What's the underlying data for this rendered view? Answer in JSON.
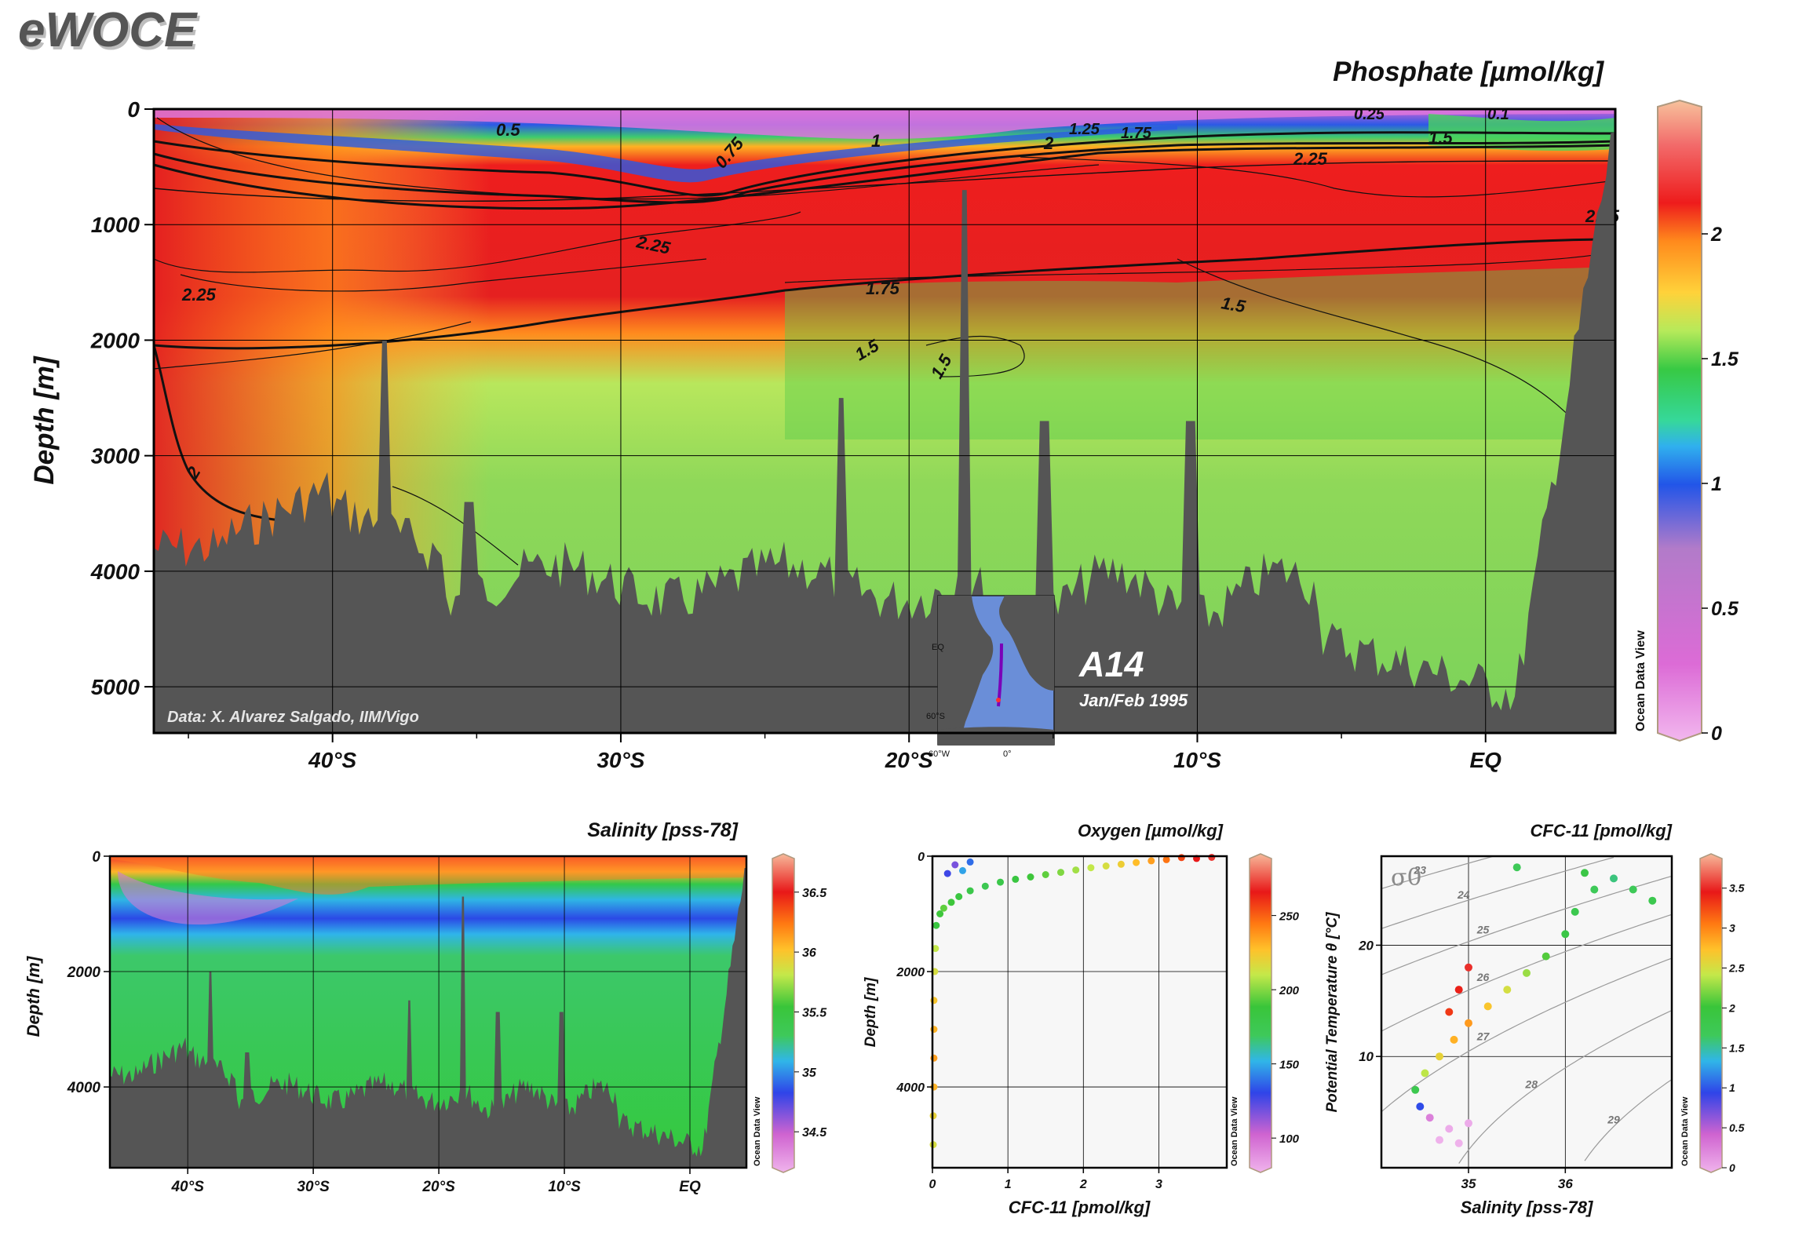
{
  "brand": "eWOCE",
  "credit": "Data: X. Alvarez Salgado, IIM/Vigo",
  "section": {
    "name": "A14",
    "period": "Jan/Feb 1995"
  },
  "odv_label": "Ocean Data View",
  "inset_map": {
    "labels": [
      "EQ",
      "60°S",
      "60°W",
      "0°"
    ]
  },
  "chart_data": [
    {
      "id": "phosphate",
      "type": "heatmap",
      "title": "Phosphate [µmol/kg]",
      "ylabel": "Depth [m]",
      "x_ticks": [
        "40°S",
        "30°S",
        "20°S",
        "10°S",
        "EQ"
      ],
      "x_tick_values": [
        -40,
        -30,
        -20,
        -10,
        0
      ],
      "xlim": [
        -46.2,
        4.5
      ],
      "y_ticks": [
        "0",
        "1000",
        "2000",
        "3000",
        "4000",
        "5000"
      ],
      "y_tick_values": [
        0,
        1000,
        2000,
        3000,
        4000,
        5000
      ],
      "ylim": [
        0,
        5400
      ],
      "colorbar": {
        "ticks": [
          "0",
          "0.5",
          "1",
          "1.5",
          "2"
        ],
        "values": [
          0,
          0.5,
          1,
          1.5,
          2
        ],
        "range": [
          0,
          2.5
        ]
      },
      "contour_labels": [
        "0.5",
        "0.75",
        "1",
        "1.25",
        "1.5",
        "1.75",
        "2",
        "2.25",
        "0.25",
        "0.1"
      ]
    },
    {
      "id": "salinity",
      "type": "heatmap",
      "title": "Salinity [pss-78]",
      "ylabel": "Depth [m]",
      "x_ticks": [
        "40°S",
        "30°S",
        "20°S",
        "10°S",
        "EQ"
      ],
      "x_tick_values": [
        -40,
        -30,
        -20,
        -10,
        0
      ],
      "xlim": [
        -46.2,
        4.5
      ],
      "y_ticks": [
        "0",
        "2000",
        "4000"
      ],
      "y_tick_values": [
        0,
        2000,
        4000
      ],
      "ylim": [
        0,
        5400
      ],
      "colorbar": {
        "ticks": [
          "34.5",
          "35",
          "35.5",
          "36",
          "36.5"
        ],
        "values": [
          34.5,
          35,
          35.5,
          36,
          36.5
        ],
        "range": [
          34.2,
          36.8
        ]
      }
    },
    {
      "id": "oxygen_cfc",
      "type": "scatter",
      "title": "Oxygen [µmol/kg]",
      "xlabel": "CFC-11 [pmol/kg]",
      "ylabel": "Depth [m]",
      "x_ticks": [
        "0",
        "1",
        "2",
        "3"
      ],
      "x_tick_values": [
        0,
        1,
        2,
        3
      ],
      "xlim": [
        0,
        3.9
      ],
      "y_ticks": [
        "0",
        "2000",
        "4000"
      ],
      "y_tick_values": [
        0,
        2000,
        4000
      ],
      "ylim": [
        0,
        5400
      ],
      "colorbar": {
        "ticks": [
          "100",
          "150",
          "200",
          "250"
        ],
        "values": [
          100,
          150,
          200,
          250
        ],
        "range": [
          80,
          290
        ]
      },
      "points": [
        {
          "x": 3.7,
          "y": 20,
          "c": 270
        },
        {
          "x": 3.5,
          "y": 40,
          "c": 265
        },
        {
          "x": 3.3,
          "y": 25,
          "c": 255
        },
        {
          "x": 3.1,
          "y": 60,
          "c": 245
        },
        {
          "x": 2.9,
          "y": 80,
          "c": 235
        },
        {
          "x": 2.7,
          "y": 110,
          "c": 228
        },
        {
          "x": 2.5,
          "y": 140,
          "c": 222
        },
        {
          "x": 2.3,
          "y": 170,
          "c": 215
        },
        {
          "x": 2.1,
          "y": 200,
          "c": 210
        },
        {
          "x": 1.9,
          "y": 240,
          "c": 205
        },
        {
          "x": 1.7,
          "y": 280,
          "c": 200
        },
        {
          "x": 1.5,
          "y": 320,
          "c": 195
        },
        {
          "x": 1.3,
          "y": 360,
          "c": 190
        },
        {
          "x": 1.1,
          "y": 400,
          "c": 185
        },
        {
          "x": 0.9,
          "y": 450,
          "c": 180
        },
        {
          "x": 0.7,
          "y": 520,
          "c": 175
        },
        {
          "x": 0.5,
          "y": 600,
          "c": 180
        },
        {
          "x": 0.35,
          "y": 700,
          "c": 185
        },
        {
          "x": 0.25,
          "y": 800,
          "c": 190
        },
        {
          "x": 0.15,
          "y": 900,
          "c": 195
        },
        {
          "x": 0.1,
          "y": 1000,
          "c": 190
        },
        {
          "x": 0.05,
          "y": 1200,
          "c": 185
        },
        {
          "x": 0.04,
          "y": 1600,
          "c": 210
        },
        {
          "x": 0.03,
          "y": 2000,
          "c": 215
        },
        {
          "x": 0.02,
          "y": 2500,
          "c": 225
        },
        {
          "x": 0.02,
          "y": 3000,
          "c": 230
        },
        {
          "x": 0.02,
          "y": 3500,
          "c": 235
        },
        {
          "x": 0.02,
          "y": 4000,
          "c": 230
        },
        {
          "x": 0.01,
          "y": 4500,
          "c": 220
        },
        {
          "x": 0.01,
          "y": 5000,
          "c": 215
        },
        {
          "x": 0.5,
          "y": 100,
          "c": 140
        },
        {
          "x": 0.3,
          "y": 150,
          "c": 120
        },
        {
          "x": 0.2,
          "y": 300,
          "c": 130
        },
        {
          "x": 0.4,
          "y": 250,
          "c": 150
        }
      ]
    },
    {
      "id": "ts",
      "type": "scatter",
      "title": "CFC-11 [pmol/kg]",
      "xlabel": "Salinity [pss-78]",
      "ylabel": "Potential Temperature θ [°C]",
      "legend_symbol": "σ0",
      "x_ticks": [
        "35",
        "36"
      ],
      "x_tick_values": [
        35,
        36
      ],
      "xlim": [
        34.1,
        37.1
      ],
      "y_ticks": [
        "10",
        "20"
      ],
      "y_tick_values": [
        10,
        20
      ],
      "ylim": [
        0,
        28
      ],
      "isopycnals": [
        "23",
        "24",
        "25",
        "26",
        "27",
        "28",
        "29"
      ],
      "colorbar": {
        "ticks": [
          "0",
          "0.5",
          "1",
          "1.5",
          "2",
          "2.5",
          "3",
          "3.5"
        ],
        "values": [
          0,
          0.5,
          1,
          1.5,
          2,
          2.5,
          3,
          3.5
        ],
        "range": [
          0,
          3.9
        ]
      },
      "points": [
        {
          "x": 34.7,
          "y": 2.5,
          "c": 0.02
        },
        {
          "x": 34.8,
          "y": 3.5,
          "c": 0.05
        },
        {
          "x": 34.9,
          "y": 2.2,
          "c": 0.01
        },
        {
          "x": 34.6,
          "y": 4.5,
          "c": 0.3
        },
        {
          "x": 34.5,
          "y": 5.5,
          "c": 1.0
        },
        {
          "x": 34.45,
          "y": 7,
          "c": 1.8
        },
        {
          "x": 34.55,
          "y": 8.5,
          "c": 2.4
        },
        {
          "x": 34.7,
          "y": 10,
          "c": 2.6
        },
        {
          "x": 34.85,
          "y": 11.5,
          "c": 2.8
        },
        {
          "x": 35.0,
          "y": 13,
          "c": 2.9
        },
        {
          "x": 35.2,
          "y": 14.5,
          "c": 2.7
        },
        {
          "x": 35.4,
          "y": 16,
          "c": 2.5
        },
        {
          "x": 35.6,
          "y": 17.5,
          "c": 2.3
        },
        {
          "x": 35.8,
          "y": 19,
          "c": 2.1
        },
        {
          "x": 36.0,
          "y": 21,
          "c": 1.9
        },
        {
          "x": 36.1,
          "y": 23,
          "c": 1.8
        },
        {
          "x": 36.3,
          "y": 25,
          "c": 1.7
        },
        {
          "x": 36.5,
          "y": 26,
          "c": 1.6
        },
        {
          "x": 36.7,
          "y": 25,
          "c": 1.7
        },
        {
          "x": 36.9,
          "y": 24,
          "c": 1.8
        },
        {
          "x": 34.8,
          "y": 14,
          "c": 3.3
        },
        {
          "x": 34.9,
          "y": 16,
          "c": 3.4
        },
        {
          "x": 35.0,
          "y": 18,
          "c": 3.5
        },
        {
          "x": 35.5,
          "y": 27,
          "c": 1.7
        },
        {
          "x": 36.2,
          "y": 26.5,
          "c": 1.9
        },
        {
          "x": 35.0,
          "y": 4,
          "c": 0.05
        }
      ]
    }
  ]
}
